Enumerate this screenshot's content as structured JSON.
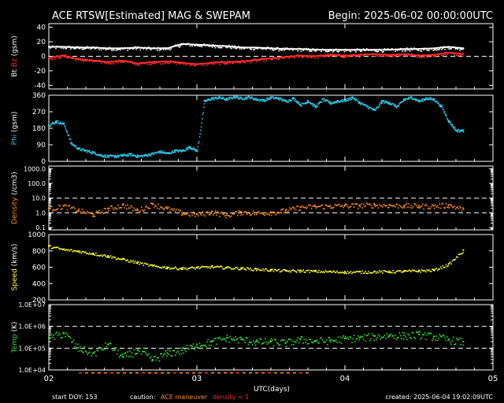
{
  "header": {
    "title": "ACE RTSW[Estimated] MAG & SWEPAM",
    "begin": "Begin: 2025-06-02 00:00:00UTC"
  },
  "footer": {
    "start_doy": "start DOY: 153",
    "caution_label": "caution:",
    "caution_maneuver": "ACE maneuver",
    "caution_density": "density < 1",
    "created": "created: 2025-06-04 19:02:09UTC"
  },
  "colors": {
    "bt": "#ffffff",
    "bz": "#ff2a2a",
    "phi": "#2ec4e6",
    "density": "#ff8c1a",
    "speed": "#ffff33",
    "temp": "#33dd33",
    "maneuver": "#ff8c1a",
    "density_low": "#ff2a2a"
  },
  "chart_data": [
    {
      "type": "line",
      "ylabel": {
        "parts": [
          "Bt",
          "Bz",
          "(gsm)"
        ]
      },
      "yticks": [
        "40",
        "20",
        "0",
        "-20",
        "-40"
      ],
      "ytick_values": [
        40,
        20,
        0,
        -20,
        -40
      ],
      "ylim": [
        -45,
        45
      ],
      "dashed_lines": [
        0
      ],
      "series": [
        {
          "name": "Bt",
          "color": "#ffffff",
          "x": [
            2.0,
            2.1,
            2.2,
            2.3,
            2.4,
            2.5,
            2.6,
            2.7,
            2.8,
            2.9,
            3.0,
            3.1,
            3.2,
            3.3,
            3.4,
            3.5,
            3.6,
            3.7,
            3.8,
            3.9,
            4.0,
            4.1,
            4.2,
            4.3,
            4.4,
            4.5,
            4.6,
            4.7,
            4.8
          ],
          "values": [
            13,
            13,
            12,
            12,
            11,
            11,
            12,
            11,
            11,
            17,
            16,
            15,
            14,
            12,
            12,
            11,
            10,
            10,
            9,
            9,
            9,
            9,
            9,
            9,
            10,
            10,
            11,
            13,
            11
          ]
        },
        {
          "name": "Bz",
          "color": "#ff2a2a",
          "x": [
            2.0,
            2.1,
            2.2,
            2.3,
            2.4,
            2.5,
            2.6,
            2.7,
            2.8,
            2.9,
            3.0,
            3.1,
            3.2,
            3.3,
            3.4,
            3.5,
            3.6,
            3.7,
            3.8,
            3.9,
            4.0,
            4.1,
            4.2,
            4.3,
            4.4,
            4.5,
            4.6,
            4.7,
            4.8
          ],
          "values": [
            -2,
            1,
            -4,
            -6,
            -8,
            -6,
            -10,
            -8,
            -7,
            -9,
            -11,
            -9,
            -8,
            -7,
            -5,
            -3,
            -1,
            1,
            0,
            2,
            1,
            2,
            3,
            2,
            3,
            1,
            2,
            5,
            3
          ]
        }
      ]
    },
    {
      "type": "scatter",
      "ylabel": {
        "parts": [
          "Phi",
          "(gsm)"
        ]
      },
      "yticks": [
        "360",
        "270",
        "180",
        "90",
        "0"
      ],
      "ytick_values": [
        360,
        270,
        180,
        90,
        0
      ],
      "ylim": [
        0,
        360
      ],
      "series": [
        {
          "name": "Phi",
          "color": "#2ec4e6",
          "x": [
            2.0,
            2.05,
            2.1,
            2.15,
            2.2,
            2.25,
            2.3,
            2.35,
            2.4,
            2.45,
            2.5,
            2.55,
            2.6,
            2.65,
            2.7,
            2.75,
            2.8,
            2.85,
            2.9,
            2.95,
            3.0,
            3.05,
            3.1,
            3.15,
            3.2,
            3.25,
            3.3,
            3.35,
            3.4,
            3.45,
            3.5,
            3.55,
            3.6,
            3.65,
            3.7,
            3.75,
            3.8,
            3.85,
            3.9,
            3.95,
            4.0,
            4.05,
            4.1,
            4.15,
            4.2,
            4.25,
            4.3,
            4.35,
            4.4,
            4.45,
            4.5,
            4.55,
            4.6,
            4.65,
            4.7,
            4.75,
            4.8
          ],
          "values": [
            200,
            220,
            205,
            100,
            70,
            60,
            50,
            35,
            30,
            30,
            35,
            40,
            30,
            35,
            45,
            55,
            45,
            60,
            60,
            80,
            60,
            330,
            345,
            350,
            340,
            355,
            345,
            352,
            340,
            335,
            350,
            345,
            330,
            345,
            310,
            330,
            300,
            340,
            320,
            330,
            335,
            350,
            320,
            300,
            280,
            330,
            320,
            300,
            340,
            350,
            330,
            345,
            340,
            300,
            220,
            170,
            170
          ]
        }
      ]
    },
    {
      "type": "scatter",
      "ylabel": {
        "parts": [
          "Density",
          "(/cm3)"
        ]
      },
      "yscale": "log",
      "yticks": [
        "1000.0",
        "100.0",
        "10.0",
        "1.0",
        "0.1"
      ],
      "ytick_values": [
        1000,
        100,
        10,
        1,
        0.1
      ],
      "ylim": [
        0.07,
        1500
      ],
      "dashed_lines": [
        10,
        1
      ],
      "series": [
        {
          "name": "Density",
          "color": "#ff8c1a",
          "x": [
            2.0,
            2.1,
            2.2,
            2.3,
            2.4,
            2.5,
            2.6,
            2.7,
            2.8,
            2.9,
            3.0,
            3.1,
            3.2,
            3.3,
            3.4,
            3.5,
            3.6,
            3.7,
            3.8,
            3.9,
            4.0,
            4.1,
            4.2,
            4.3,
            4.4,
            4.5,
            4.6,
            4.7,
            4.8
          ],
          "values": [
            2,
            3,
            1.5,
            0.8,
            2,
            3.5,
            1.5,
            4,
            2,
            1,
            0.8,
            1.2,
            0.7,
            1.2,
            1,
            1.1,
            1.5,
            2.5,
            2.8,
            3,
            3.2,
            3.3,
            3.5,
            3.4,
            3.2,
            3,
            3,
            3.5,
            1.8
          ]
        }
      ]
    },
    {
      "type": "scatter",
      "ylabel": {
        "parts": [
          "Speed",
          "(km/s)"
        ]
      },
      "yticks": [
        "1000",
        "800",
        "600",
        "400",
        "200"
      ],
      "ytick_values": [
        1000,
        800,
        600,
        400,
        200
      ],
      "ylim": [
        200,
        1000
      ],
      "series": [
        {
          "name": "Speed",
          "color": "#ffff33",
          "x": [
            2.0,
            2.1,
            2.2,
            2.3,
            2.4,
            2.5,
            2.6,
            2.7,
            2.8,
            2.9,
            3.0,
            3.1,
            3.2,
            3.3,
            3.4,
            3.5,
            3.6,
            3.7,
            3.8,
            3.9,
            4.0,
            4.1,
            4.2,
            4.3,
            4.4,
            4.5,
            4.6,
            4.7,
            4.8
          ],
          "values": [
            860,
            820,
            800,
            770,
            740,
            700,
            660,
            620,
            600,
            590,
            600,
            610,
            600,
            590,
            580,
            570,
            560,
            560,
            555,
            550,
            545,
            545,
            550,
            550,
            555,
            560,
            570,
            640,
            810
          ]
        }
      ]
    },
    {
      "type": "scatter",
      "ylabel": {
        "parts": [
          "Temp",
          "(K)"
        ]
      },
      "yscale": "log",
      "yticks": [
        "1.0E+07",
        "1.0E+06",
        "1.0E+05",
        "1.0E+04"
      ],
      "ytick_values": [
        10000000,
        1000000,
        100000,
        10000
      ],
      "ylim": [
        10000,
        10000000
      ],
      "dashed_lines": [
        1000000,
        100000
      ],
      "series": [
        {
          "name": "Temp",
          "color": "#33dd33",
          "x": [
            2.0,
            2.1,
            2.2,
            2.3,
            2.4,
            2.5,
            2.6,
            2.7,
            2.8,
            2.9,
            3.0,
            3.1,
            3.2,
            3.3,
            3.4,
            3.5,
            3.6,
            3.7,
            3.8,
            3.9,
            4.0,
            4.1,
            4.2,
            4.3,
            4.4,
            4.5,
            4.6,
            4.7,
            4.8
          ],
          "values": [
            300000,
            500000,
            100000,
            60000,
            150000,
            40000,
            80000,
            30000,
            60000,
            80000,
            150000,
            200000,
            300000,
            250000,
            200000,
            200000,
            180000,
            250000,
            220000,
            230000,
            280000,
            300000,
            350000,
            400000,
            380000,
            420000,
            350000,
            250000,
            200000
          ]
        }
      ]
    }
  ],
  "xaxis": {
    "ticks": [
      "02",
      "03",
      "04",
      "05"
    ],
    "tick_values": [
      2,
      3,
      4,
      5
    ],
    "xlim": [
      2,
      5
    ],
    "label": "UTC(days)"
  }
}
